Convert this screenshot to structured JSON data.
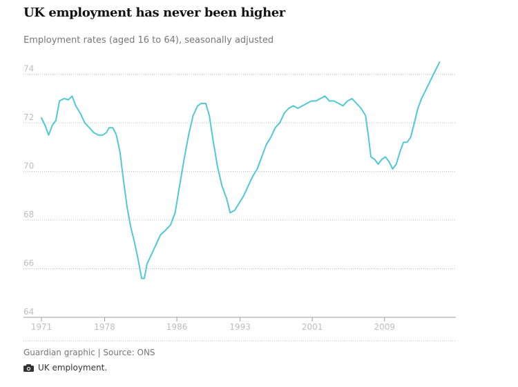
{
  "title": "UK employment has never been higher",
  "subtitle": "Employment rates (aged 16 to 64), seasonally adjusted",
  "source": "Guardian graphic | Source: ONS",
  "caption": "UK employment.",
  "icons": {
    "caption_icon": "camera-icon"
  },
  "colors": {
    "line": "#4fc8d6",
    "grid": "#bdbdbd",
    "tick_text": "#bdbdbd",
    "title": "#121212",
    "subtitle": "#767676"
  },
  "chart_data": {
    "type": "line",
    "title": "UK employment has never been higher",
    "subtitle": "Employment rates (aged 16 to 64), seasonally adjusted",
    "xlabel": "",
    "ylabel": "",
    "xlim": [
      1971,
      2016.9
    ],
    "ylim": [
      64,
      74.5
    ],
    "x_ticks": [
      1971,
      1978,
      1986,
      1993,
      2001,
      2009
    ],
    "y_ticks": [
      64,
      66,
      68,
      70,
      72,
      74
    ],
    "grid": true,
    "series": [
      {
        "points": [
          [
            1971.0,
            72.2
          ],
          [
            1971.4,
            71.9
          ],
          [
            1971.8,
            71.5
          ],
          [
            1972.2,
            71.9
          ],
          [
            1972.6,
            72.1
          ],
          [
            1973.0,
            72.9
          ],
          [
            1973.5,
            73.0
          ],
          [
            1974.0,
            72.95
          ],
          [
            1974.4,
            73.1
          ],
          [
            1974.8,
            72.7
          ],
          [
            1975.3,
            72.4
          ],
          [
            1975.8,
            72.0
          ],
          [
            1976.3,
            71.8
          ],
          [
            1976.8,
            71.6
          ],
          [
            1977.3,
            71.5
          ],
          [
            1977.8,
            71.5
          ],
          [
            1978.2,
            71.6
          ],
          [
            1978.5,
            71.8
          ],
          [
            1978.9,
            71.8
          ],
          [
            1979.3,
            71.5
          ],
          [
            1979.7,
            70.8
          ],
          [
            1980.1,
            69.6
          ],
          [
            1980.5,
            68.5
          ],
          [
            1980.9,
            67.7
          ],
          [
            1981.3,
            67.1
          ],
          [
            1981.7,
            66.4
          ],
          [
            1982.1,
            65.6
          ],
          [
            1982.4,
            65.6
          ],
          [
            1982.7,
            66.2
          ],
          [
            1983.2,
            66.6
          ],
          [
            1983.7,
            67.0
          ],
          [
            1984.2,
            67.4
          ],
          [
            1984.8,
            67.6
          ],
          [
            1985.3,
            67.8
          ],
          [
            1985.8,
            68.3
          ],
          [
            1986.3,
            69.4
          ],
          [
            1986.8,
            70.5
          ],
          [
            1987.3,
            71.5
          ],
          [
            1987.8,
            72.3
          ],
          [
            1988.3,
            72.7
          ],
          [
            1988.7,
            72.8
          ],
          [
            1989.2,
            72.8
          ],
          [
            1989.6,
            72.3
          ],
          [
            1990.0,
            71.3
          ],
          [
            1990.5,
            70.2
          ],
          [
            1991.0,
            69.4
          ],
          [
            1991.5,
            68.9
          ],
          [
            1991.9,
            68.3
          ],
          [
            1992.4,
            68.4
          ],
          [
            1992.9,
            68.7
          ],
          [
            1993.4,
            69.0
          ],
          [
            1993.9,
            69.4
          ],
          [
            1994.4,
            69.8
          ],
          [
            1994.9,
            70.1
          ],
          [
            1995.4,
            70.6
          ],
          [
            1995.9,
            71.1
          ],
          [
            1996.4,
            71.4
          ],
          [
            1996.9,
            71.8
          ],
          [
            1997.4,
            72.0
          ],
          [
            1997.9,
            72.4
          ],
          [
            1998.4,
            72.6
          ],
          [
            1998.9,
            72.7
          ],
          [
            1999.4,
            72.6
          ],
          [
            1999.9,
            72.7
          ],
          [
            2000.4,
            72.8
          ],
          [
            2000.9,
            72.9
          ],
          [
            2001.4,
            72.9
          ],
          [
            2001.9,
            73.0
          ],
          [
            2002.4,
            73.1
          ],
          [
            2002.9,
            72.9
          ],
          [
            2003.4,
            72.9
          ],
          [
            2003.9,
            72.8
          ],
          [
            2004.4,
            72.7
          ],
          [
            2004.9,
            72.9
          ],
          [
            2005.4,
            73.0
          ],
          [
            2005.9,
            72.8
          ],
          [
            2006.4,
            72.6
          ],
          [
            2006.9,
            72.3
          ],
          [
            2007.2,
            71.5
          ],
          [
            2007.5,
            70.6
          ],
          [
            2007.9,
            70.5
          ],
          [
            2008.3,
            70.3
          ],
          [
            2008.7,
            70.5
          ],
          [
            2009.1,
            70.6
          ],
          [
            2009.5,
            70.4
          ],
          [
            2009.9,
            70.1
          ],
          [
            2010.3,
            70.3
          ],
          [
            2010.7,
            70.8
          ],
          [
            2011.1,
            71.2
          ],
          [
            2011.5,
            71.2
          ],
          [
            2011.9,
            71.4
          ],
          [
            2012.3,
            72.0
          ],
          [
            2012.7,
            72.6
          ],
          [
            2013.1,
            73.0
          ],
          [
            2013.5,
            73.3
          ],
          [
            2013.9,
            73.6
          ],
          [
            2014.3,
            73.9
          ],
          [
            2014.7,
            74.2
          ],
          [
            2015.1,
            74.5
          ]
        ]
      }
    ]
  }
}
